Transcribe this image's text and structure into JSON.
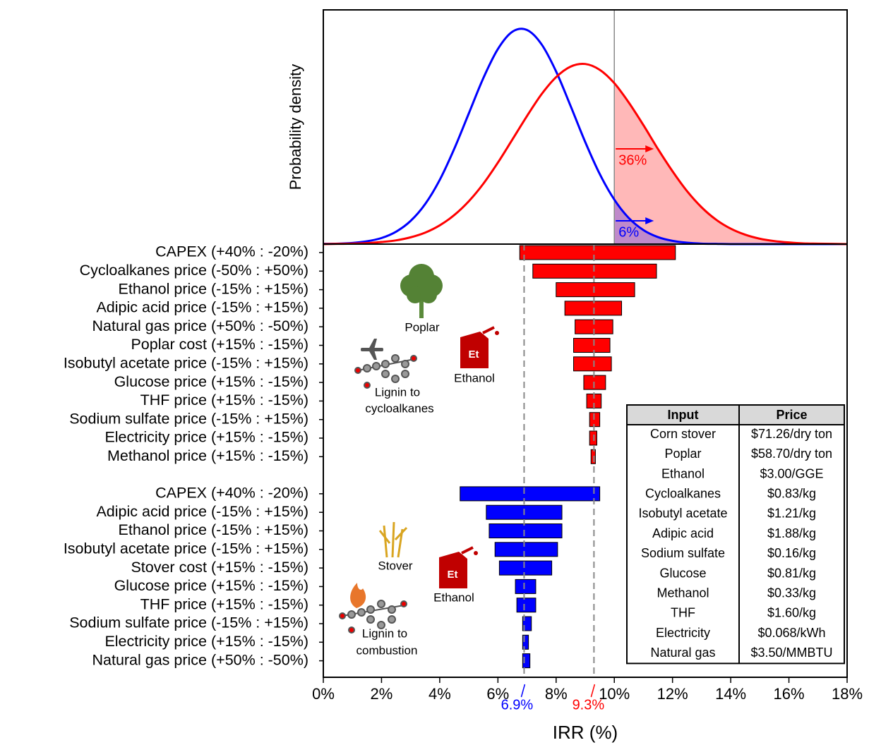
{
  "chart_data": [
    {
      "type": "density",
      "ylabel": "Probability density",
      "xlim": [
        0,
        18
      ],
      "ylim": [
        0,
        1
      ],
      "threshold": 10,
      "x": [
        0,
        0.5,
        1,
        1.5,
        2,
        2.5,
        3,
        3.5,
        4,
        4.5,
        5,
        5.5,
        6,
        6.5,
        7,
        7.5,
        8,
        8.5,
        9,
        9.5,
        10,
        10.5,
        11,
        11.5,
        12,
        12.5,
        13,
        13.5,
        14,
        14.5,
        15,
        15.5,
        16,
        16.5,
        17,
        17.5,
        18
      ],
      "series": [
        {
          "color": "#ff0000",
          "values": [
            0,
            0.001,
            0.002,
            0.004,
            0.009,
            0.016,
            0.029,
            0.049,
            0.08,
            0.124,
            0.183,
            0.258,
            0.348,
            0.447,
            0.547,
            0.64,
            0.713,
            0.758,
            0.769,
            0.744,
            0.687,
            0.604,
            0.508,
            0.406,
            0.311,
            0.226,
            0.157,
            0.104,
            0.066,
            0.04,
            0.023,
            0.013,
            0.007,
            0.003,
            0.002,
            0.001,
            0
          ]
        },
        {
          "color": "#0000ff",
          "values": [
            0.001,
            0.002,
            0.005,
            0.012,
            0.026,
            0.053,
            0.099,
            0.171,
            0.274,
            0.407,
            0.558,
            0.709,
            0.833,
            0.907,
            0.914,
            0.853,
            0.737,
            0.589,
            0.436,
            0.299,
            0.19,
            0.111,
            0.06,
            0.03,
            0.014,
            0.006,
            0.002,
            0.001,
            0,
            0,
            0,
            0,
            0,
            0,
            0,
            0,
            0
          ]
        }
      ],
      "annotations": [
        {
          "text": "36%",
          "color": "#ff0000"
        },
        {
          "text": "6%",
          "color": "#0000ff"
        }
      ]
    },
    {
      "type": "tornado",
      "xlabel": "IRR (%)",
      "xlim": [
        0,
        18
      ],
      "xticks": [
        {
          "value": 0,
          "label": "0%"
        },
        {
          "value": 2,
          "label": "2%"
        },
        {
          "value": 4,
          "label": "4%"
        },
        {
          "value": 6,
          "label": "6%"
        },
        {
          "value": 8,
          "label": "8%"
        },
        {
          "value": 10,
          "label": "10%"
        },
        {
          "value": 12,
          "label": "12%"
        },
        {
          "value": 14,
          "label": "14%"
        },
        {
          "value": 16,
          "label": "16%"
        },
        {
          "value": 18,
          "label": "18%"
        }
      ],
      "reference_lines": [
        {
          "value": 6.9,
          "label": "6.9%",
          "color": "#0000ff"
        },
        {
          "value": 9.3,
          "label": "9.3%",
          "color": "#ff0000"
        }
      ],
      "series": [
        {
          "color": "#ff0000",
          "categories": [
            "CAPEX (+40% : -20%)",
            "Cycloalkanes price (-50% : +50%)",
            "Ethanol price (-15% : +15%)",
            "Adipic acid price (-15% : +15%)",
            "Natural gas price (+50% : -50%)",
            "Poplar cost (+15% : -15%)",
            "Isobutyl acetate price (-15% : +15%)",
            "Glucose price (+15% : -15%)",
            "THF price (+15% : -15%)",
            "Sodium sulfate price (-15% : +15%)",
            "Electricity price (+15% : -15%)",
            "Methanol price (+15% : -15%)"
          ],
          "low": [
            6.75,
            7.2,
            8.0,
            8.3,
            8.65,
            8.6,
            8.6,
            8.95,
            9.05,
            9.15,
            9.15,
            9.2
          ],
          "high": [
            12.1,
            11.45,
            10.7,
            10.25,
            9.95,
            9.85,
            9.9,
            9.7,
            9.55,
            9.5,
            9.4,
            9.35
          ]
        },
        {
          "color": "#0000ff",
          "categories": [
            "CAPEX (+40% : -20%)",
            "Adipic acid price (-15% : +15%)",
            "Ethanol price (-15% : +15%)",
            "Isobutyl acetate price (-15% : +15%)",
            "Stover cost (+15% : -15%)",
            "Glucose price (+15% : -15%)",
            "THF price (+15% : -15%)",
            "Sodium sulfate price (-15% : +15%)",
            "Electricity price (+15% : -15%)",
            "Natural gas price (+50% : -50%)"
          ],
          "low": [
            4.7,
            5.6,
            5.7,
            5.9,
            6.05,
            6.6,
            6.65,
            6.85,
            6.85,
            6.85
          ],
          "high": [
            9.5,
            8.2,
            8.2,
            8.05,
            7.85,
            7.3,
            7.3,
            7.15,
            7.05,
            7.1
          ]
        }
      ],
      "icon_labels": [
        "Poplar",
        "Et",
        "Ethanol",
        "Lignin to",
        "cycloalkanes",
        "Stover",
        "Et",
        "Ethanol",
        "Lignin to",
        "combustion"
      ],
      "table": {
        "header": [
          "Input",
          "Price"
        ],
        "rows": [
          [
            "Corn stover",
            "$71.26/dry ton"
          ],
          [
            "Poplar",
            "$58.70/dry ton"
          ],
          [
            "Ethanol",
            "$3.00/GGE"
          ],
          [
            "Cycloalkanes",
            "$0.83/kg"
          ],
          [
            "Isobutyl acetate",
            "$1.21/kg"
          ],
          [
            "Adipic acid",
            "$1.88/kg"
          ],
          [
            "Sodium sulfate",
            "$0.16/kg"
          ],
          [
            "Glucose",
            "$0.81/kg"
          ],
          [
            "Methanol",
            "$0.33/kg"
          ],
          [
            "THF",
            "$1.60/kg"
          ],
          [
            "Electricity",
            "$0.068/kWh"
          ],
          [
            "Natural gas",
            "$3.50/MMBTU"
          ]
        ]
      }
    }
  ]
}
